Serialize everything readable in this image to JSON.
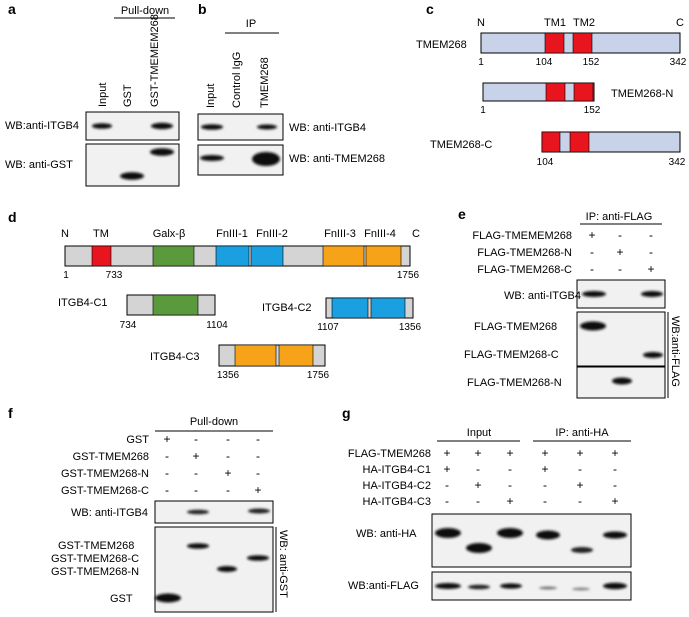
{
  "colors": {
    "tm": "#e8141e",
    "main": "#c8d3ea",
    "galx": "#5a9a3c",
    "fn12": "#1aa0e0",
    "fn34": "#f6a31a",
    "itgb4_body": "#d4d4d4",
    "blot_bg": "#f1f1f1"
  },
  "panel_a": {
    "letter": "a",
    "header": "Pull-down",
    "lanes": [
      "Input",
      "GST",
      "GST-TMEMEM268"
    ],
    "wb1": "WB:anti-ITGB4",
    "wb2": "WB: anti-GST"
  },
  "panel_b": {
    "letter": "b",
    "header": "IP",
    "lanes": [
      "Input",
      "Control IgG",
      "TMEM268"
    ],
    "wb1": "WB: anti-ITGB4",
    "wb2": "WB: anti-TMEM268"
  },
  "panel_c": {
    "letter": "c",
    "full": "TMEM268",
    "n": "N",
    "tm1": "TM1",
    "tm2": "TM2",
    "c": "C",
    "n_frag": "TMEM268-N",
    "c_frag": "TMEM268-C",
    "pos": [
      "1",
      "104",
      "152",
      "342",
      "1",
      "152",
      "104",
      "342"
    ]
  },
  "panel_d": {
    "letter": "d",
    "n": "N",
    "tm": "TM",
    "galx": "Galx-β",
    "fn1": "FnIII-1",
    "fn2": "FnIII-2",
    "fn3": "FnIII-3",
    "fn4": "FnIII-4",
    "c": "C",
    "pos": [
      "1",
      "733",
      "1756"
    ],
    "c1": "ITGB4-C1",
    "c1_pos": [
      "734",
      "1104"
    ],
    "c2": "ITGB4-C2",
    "c2_pos": [
      "1107",
      "1356"
    ],
    "c3": "ITGB4-C3",
    "c3_pos": [
      "1356",
      "1756"
    ]
  },
  "panel_e": {
    "letter": "e",
    "header": "IP: anti-FLAG",
    "rows": [
      {
        "label": "FLAG-TMEMEM268",
        "signs": [
          "+",
          "-",
          "-"
        ]
      },
      {
        "label": "FLAG-TMEM268-N",
        "signs": [
          "-",
          "+",
          "-"
        ]
      },
      {
        "label": "FLAG-TMEM268-C",
        "signs": [
          "-",
          "-",
          "+"
        ]
      }
    ],
    "wb1": "WB: anti-ITGB4",
    "b1": "FLAG-TMEM268",
    "b2": "FLAG-TMEM268-C",
    "b3": "FLAG-TMEM268-N",
    "side": "WB:anti-FLAG"
  },
  "panel_f": {
    "letter": "f",
    "header": "Pull-down",
    "rows": [
      {
        "label": "GST",
        "signs": [
          "+",
          "-",
          "-",
          "-"
        ]
      },
      {
        "label": "GST-TMEM268",
        "signs": [
          "-",
          "+",
          "-",
          "-"
        ]
      },
      {
        "label": "GST-TMEM268-N",
        "signs": [
          "-",
          "-",
          "+",
          "-"
        ]
      },
      {
        "label": "GST-TMEM268-C",
        "signs": [
          "-",
          "-",
          "-",
          "+"
        ]
      }
    ],
    "wb1": "WB: anti-ITGB4",
    "b1": "GST-TMEM268",
    "b2": "GST-TMEM268-C",
    "b3": "GST-TMEM268-N",
    "b4": "GST",
    "side": "WB: anti-GST"
  },
  "panel_g": {
    "letter": "g",
    "input": "Input",
    "ip": "IP: anti-HA",
    "rows": [
      {
        "label": "FLAG-TMEM268",
        "signs": [
          "+",
          "+",
          "+",
          "+",
          "+",
          "+"
        ]
      },
      {
        "label": "HA-ITGB4-C1",
        "signs": [
          "+",
          "-",
          "-",
          "+",
          "-",
          "-"
        ]
      },
      {
        "label": "HA-ITGB4-C2",
        "signs": [
          "-",
          "+",
          "-",
          "-",
          "+",
          "-"
        ]
      },
      {
        "label": "HA-ITGB4-C3",
        "signs": [
          "-",
          "-",
          "+",
          "-",
          "-",
          "+"
        ]
      }
    ],
    "wb1": "WB: anti-HA",
    "wb2": "WB:anti-FLAG"
  }
}
